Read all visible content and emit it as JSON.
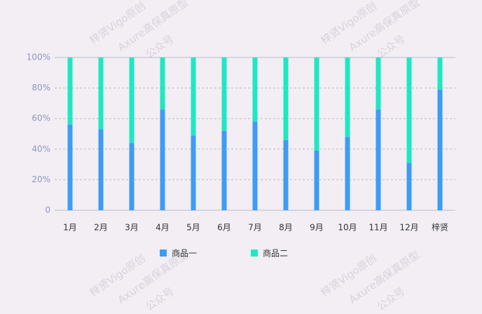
{
  "chart_data": {
    "type": "bar",
    "stacked": true,
    "categories": [
      "1月",
      "2月",
      "3月",
      "4月",
      "5月",
      "6月",
      "7月",
      "8月",
      "9月",
      "10月",
      "11月",
      "12月",
      "梓贤"
    ],
    "series": [
      {
        "name": "商品一",
        "color": "#3d9cf5",
        "values": [
          56,
          53,
          44,
          66,
          49,
          52,
          58,
          46,
          39,
          48,
          66,
          31,
          79
        ]
      },
      {
        "name": "商品二",
        "color": "#1ee8c4",
        "values": [
          44,
          47,
          56,
          34,
          51,
          48,
          42,
          54,
          61,
          52,
          34,
          69,
          21
        ]
      }
    ],
    "ylim": [
      0,
      100
    ],
    "yticks": [
      0,
      {
        "value": 20,
        "label": "20%"
      },
      {
        "value": 40,
        "label": "40%"
      },
      {
        "value": 60,
        "label": "60%"
      },
      {
        "value": 80,
        "label": "80%"
      },
      {
        "value": 100,
        "label": "100%"
      }
    ],
    "grid": true,
    "legend": "bottom",
    "watermarks": [
      "梓贤Vigo原创",
      "Axure高保真原型",
      "公众号"
    ]
  }
}
